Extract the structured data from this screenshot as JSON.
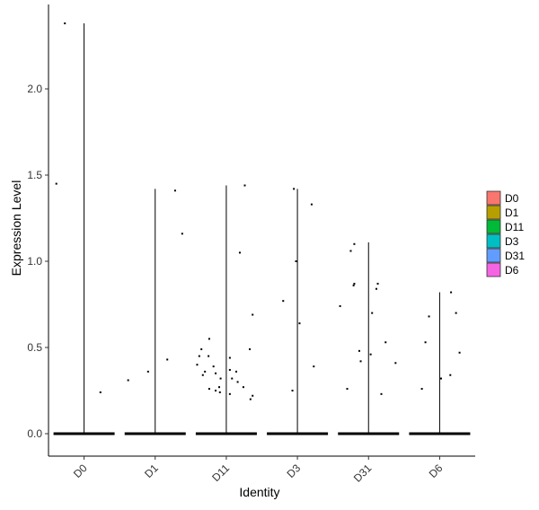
{
  "chart_data": {
    "type": "violin",
    "title": "",
    "xlabel": "Identity",
    "ylabel": "Expression Level",
    "categories": [
      "D0",
      "D1",
      "D11",
      "D3",
      "D31",
      "D6"
    ],
    "ylim": [
      -0.12,
      2.5
    ],
    "y_ticks": [
      0.0,
      0.5,
      1.0,
      1.5,
      2.0
    ],
    "y_tick_labels": [
      "0.0",
      "0.5",
      "1.0",
      "1.5",
      "2.0"
    ],
    "grid": false,
    "legend": {
      "position": "right",
      "entries": [
        {
          "label": "D0",
          "color": "#F8766D"
        },
        {
          "label": "D1",
          "color": "#B79F00"
        },
        {
          "label": "D11",
          "color": "#00BA38"
        },
        {
          "label": "D3",
          "color": "#00BFC4"
        },
        {
          "label": "D31",
          "color": "#619CFF"
        },
        {
          "label": "D6",
          "color": "#F564E3"
        }
      ]
    },
    "series": [
      {
        "category": "D0",
        "max": 2.38,
        "points": [
          [
            -0.27,
            2.38
          ],
          [
            -0.39,
            1.45
          ],
          [
            0.23,
            0.24
          ]
        ]
      },
      {
        "category": "D1",
        "max": 1.42,
        "points": [
          [
            0.28,
            1.41
          ],
          [
            0.38,
            1.16
          ],
          [
            -0.38,
            0.31
          ],
          [
            -0.1,
            0.36
          ],
          [
            0.17,
            0.43
          ]
        ]
      },
      {
        "category": "D11",
        "max": 1.44,
        "points": [
          [
            0.26,
            1.44
          ],
          [
            0.19,
            1.05
          ],
          [
            0.37,
            0.69
          ],
          [
            -0.24,
            0.55
          ],
          [
            -0.35,
            0.49
          ],
          [
            0.33,
            0.49
          ],
          [
            -0.38,
            0.45
          ],
          [
            -0.25,
            0.45
          ],
          [
            0.05,
            0.44
          ],
          [
            -0.41,
            0.4
          ],
          [
            -0.18,
            0.39
          ],
          [
            -0.3,
            0.36
          ],
          [
            0.05,
            0.37
          ],
          [
            0.14,
            0.36
          ],
          [
            -0.15,
            0.35
          ],
          [
            -0.33,
            0.34
          ],
          [
            -0.08,
            0.32
          ],
          [
            0.08,
            0.32
          ],
          [
            0.16,
            0.3
          ],
          [
            -0.1,
            0.27
          ],
          [
            0.24,
            0.27
          ],
          [
            -0.24,
            0.26
          ],
          [
            -0.15,
            0.25
          ],
          [
            -0.09,
            0.24
          ],
          [
            0.05,
            0.23
          ],
          [
            0.37,
            0.22
          ],
          [
            0.34,
            0.2
          ]
        ]
      },
      {
        "category": "D3",
        "max": 1.42,
        "points": [
          [
            -0.05,
            1.42
          ],
          [
            0.2,
            1.33
          ],
          [
            -0.02,
            1.0
          ],
          [
            -0.2,
            0.77
          ],
          [
            0.03,
            0.64
          ],
          [
            0.23,
            0.39
          ],
          [
            -0.07,
            0.25
          ]
        ]
      },
      {
        "category": "D31",
        "max": 1.11,
        "points": [
          [
            -0.2,
            1.1
          ],
          [
            -0.25,
            1.06
          ],
          [
            0.13,
            0.87
          ],
          [
            -0.2,
            0.87
          ],
          [
            -0.21,
            0.86
          ],
          [
            0.11,
            0.84
          ],
          [
            -0.4,
            0.74
          ],
          [
            0.05,
            0.7
          ],
          [
            0.24,
            0.53
          ],
          [
            -0.13,
            0.48
          ],
          [
            0.03,
            0.46
          ],
          [
            -0.11,
            0.42
          ],
          [
            0.38,
            0.41
          ],
          [
            -0.3,
            0.26
          ],
          [
            0.18,
            0.23
          ]
        ]
      },
      {
        "category": "D6",
        "max": 0.82,
        "points": [
          [
            0.16,
            0.82
          ],
          [
            0.23,
            0.7
          ],
          [
            -0.15,
            0.68
          ],
          [
            -0.2,
            0.53
          ],
          [
            0.28,
            0.47
          ],
          [
            0.15,
            0.34
          ],
          [
            0.02,
            0.32
          ],
          [
            -0.25,
            0.26
          ]
        ]
      }
    ]
  }
}
